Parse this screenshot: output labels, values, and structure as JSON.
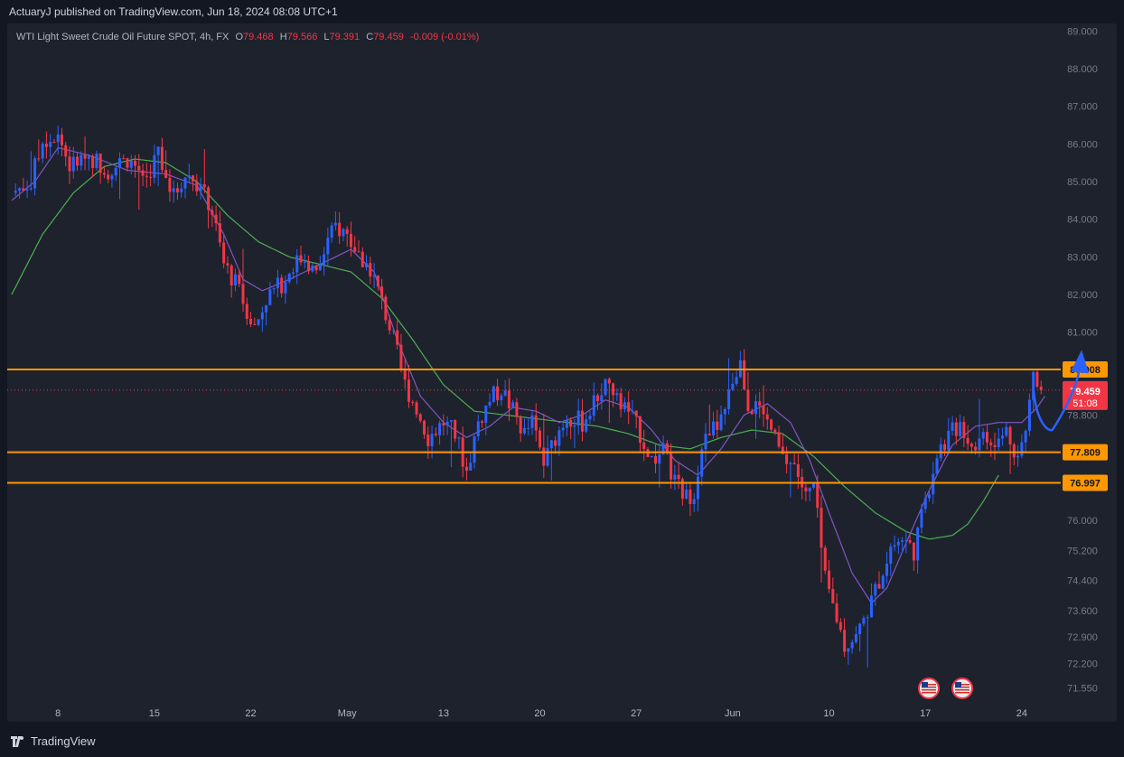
{
  "header": {
    "publisher_line": "ActuaryJ published on TradingView.com, Jun 18, 2024 08:08 UTC+1"
  },
  "legend": {
    "symbol": "WTI Light Sweet Crude Oil Future SPOT, 4h, FX",
    "open_label": "O",
    "open": "79.468",
    "high_label": "H",
    "high": "79.566",
    "low_label": "L",
    "low": "79.391",
    "close_label": "C",
    "close": "79.459",
    "change": "-0.009 (-0.01%)"
  },
  "footer": {
    "brand": "TradingView"
  },
  "colors": {
    "up": "#2962ff",
    "down": "#f23645",
    "ma_fast": "#7e57c2",
    "ma_slow": "#4caf50",
    "level": "#ff9800",
    "arrow": "#2962ff",
    "background": "#1e222d"
  },
  "chart_data": {
    "type": "candlestick",
    "title": "WTI Light Sweet Crude Oil Future SPOT, 4h, FX",
    "ylim": [
      71.2,
      89.2
    ],
    "y_tick_labels": [
      "89.000",
      "88.000",
      "87.000",
      "86.000",
      "85.000",
      "84.000",
      "83.000",
      "82.000",
      "81.000",
      "78.800",
      "76.000",
      "75.200",
      "74.400",
      "73.600",
      "72.900",
      "72.200",
      "71.550"
    ],
    "y_tick_values": [
      89.0,
      88.0,
      87.0,
      86.0,
      85.0,
      84.0,
      83.0,
      82.0,
      81.0,
      78.8,
      76.0,
      75.2,
      74.4,
      73.6,
      72.9,
      72.2,
      71.55
    ],
    "x_tick_labels": [
      "8",
      "15",
      "22",
      "May",
      "13",
      "20",
      "27",
      "Jun",
      "10",
      "17",
      "24"
    ],
    "x_tick_index": [
      12,
      37,
      62,
      87,
      112,
      137,
      162,
      187,
      212,
      237,
      262
    ],
    "price_levels": [
      {
        "label": "80.008",
        "value": 80.008
      },
      {
        "label": "77.809",
        "value": 77.809
      },
      {
        "label": "76.997",
        "value": 76.997
      }
    ],
    "current_price": {
      "label": "79.459",
      "value": 79.459,
      "countdown": "51:08"
    },
    "anchors": [
      [
        0,
        84.7
      ],
      [
        5,
        85.0
      ],
      [
        8,
        86.1
      ],
      [
        12,
        86.3
      ],
      [
        15,
        85.4
      ],
      [
        20,
        85.7
      ],
      [
        25,
        85.3
      ],
      [
        30,
        85.6
      ],
      [
        35,
        85.1
      ],
      [
        38,
        85.8
      ],
      [
        42,
        84.6
      ],
      [
        45,
        85.2
      ],
      [
        48,
        85.0
      ],
      [
        52,
        84.2
      ],
      [
        55,
        82.8
      ],
      [
        58,
        82.3
      ],
      [
        61,
        81.6
      ],
      [
        63,
        81.1
      ],
      [
        66,
        81.9
      ],
      [
        70,
        82.3
      ],
      [
        73,
        82.8
      ],
      [
        76,
        83.0
      ],
      [
        79,
        82.5
      ],
      [
        82,
        83.4
      ],
      [
        84,
        83.8
      ],
      [
        87,
        83.6
      ],
      [
        90,
        83.0
      ],
      [
        93,
        82.7
      ],
      [
        96,
        81.8
      ],
      [
        99,
        80.8
      ],
      [
        102,
        79.6
      ],
      [
        105,
        79.0
      ],
      [
        108,
        78.2
      ],
      [
        112,
        78.6
      ],
      [
        115,
        78.3
      ],
      [
        118,
        77.3
      ],
      [
        121,
        78.6
      ],
      [
        124,
        79.2
      ],
      [
        127,
        79.5
      ],
      [
        130,
        78.9
      ],
      [
        133,
        78.3
      ],
      [
        135,
        78.6
      ],
      [
        138,
        77.5
      ],
      [
        141,
        78.2
      ],
      [
        144,
        78.8
      ],
      [
        148,
        78.6
      ],
      [
        151,
        79.1
      ],
      [
        154,
        79.7
      ],
      [
        157,
        79.2
      ],
      [
        160,
        78.9
      ],
      [
        163,
        78.3
      ],
      [
        166,
        77.6
      ],
      [
        169,
        77.8
      ],
      [
        172,
        77.0
      ],
      [
        175,
        76.6
      ],
      [
        177,
        76.8
      ],
      [
        179,
        78.0
      ],
      [
        182,
        78.4
      ],
      [
        185,
        78.8
      ],
      [
        187,
        79.7
      ],
      [
        189,
        80.2
      ],
      [
        191,
        79.1
      ],
      [
        194,
        78.9
      ],
      [
        197,
        78.4
      ],
      [
        200,
        77.6
      ],
      [
        203,
        77.5
      ],
      [
        206,
        76.6
      ],
      [
        208,
        76.9
      ],
      [
        211,
        74.4
      ],
      [
        214,
        73.4
      ],
      [
        216,
        72.7
      ],
      [
        219,
        72.9
      ],
      [
        222,
        73.6
      ],
      [
        225,
        74.4
      ],
      [
        228,
        75.3
      ],
      [
        231,
        75.5
      ],
      [
        234,
        75.2
      ],
      [
        237,
        76.5
      ],
      [
        240,
        77.8
      ],
      [
        243,
        78.2
      ],
      [
        246,
        78.6
      ],
      [
        249,
        78.0
      ],
      [
        252,
        78.2
      ],
      [
        255,
        77.9
      ],
      [
        258,
        78.4
      ],
      [
        261,
        77.7
      ],
      [
        263,
        78.3
      ],
      [
        265,
        80.0
      ],
      [
        267,
        79.5
      ]
    ],
    "ma_fast_anchors": [
      [
        0,
        84.5
      ],
      [
        6,
        85.0
      ],
      [
        12,
        85.9
      ],
      [
        20,
        85.7
      ],
      [
        30,
        85.3
      ],
      [
        40,
        85.2
      ],
      [
        48,
        84.9
      ],
      [
        55,
        83.6
      ],
      [
        60,
        82.4
      ],
      [
        65,
        82.1
      ],
      [
        72,
        82.4
      ],
      [
        80,
        82.8
      ],
      [
        88,
        83.2
      ],
      [
        94,
        82.6
      ],
      [
        100,
        80.8
      ],
      [
        106,
        79.3
      ],
      [
        112,
        78.6
      ],
      [
        118,
        78.2
      ],
      [
        124,
        78.5
      ],
      [
        130,
        79.0
      ],
      [
        136,
        78.9
      ],
      [
        142,
        78.6
      ],
      [
        148,
        78.8
      ],
      [
        154,
        79.2
      ],
      [
        160,
        79.0
      ],
      [
        166,
        78.4
      ],
      [
        172,
        77.6
      ],
      [
        178,
        77.2
      ],
      [
        184,
        77.9
      ],
      [
        190,
        78.8
      ],
      [
        196,
        79.1
      ],
      [
        202,
        78.6
      ],
      [
        207,
        77.6
      ],
      [
        212,
        76.2
      ],
      [
        218,
        74.6
      ],
      [
        223,
        73.8
      ],
      [
        227,
        74.2
      ],
      [
        232,
        75.4
      ],
      [
        238,
        76.8
      ],
      [
        244,
        78.0
      ],
      [
        250,
        78.5
      ],
      [
        256,
        78.6
      ],
      [
        262,
        78.6
      ],
      [
        266,
        79.0
      ],
      [
        268,
        79.3
      ]
    ],
    "ma_slow_anchors": [
      [
        0,
        82.0
      ],
      [
        8,
        83.6
      ],
      [
        16,
        84.7
      ],
      [
        24,
        85.4
      ],
      [
        32,
        85.6
      ],
      [
        40,
        85.5
      ],
      [
        48,
        85.0
      ],
      [
        56,
        84.1
      ],
      [
        64,
        83.4
      ],
      [
        72,
        83.0
      ],
      [
        80,
        82.8
      ],
      [
        88,
        82.6
      ],
      [
        96,
        81.9
      ],
      [
        104,
        80.8
      ],
      [
        112,
        79.6
      ],
      [
        120,
        78.9
      ],
      [
        128,
        78.8
      ],
      [
        136,
        78.7
      ],
      [
        144,
        78.6
      ],
      [
        152,
        78.5
      ],
      [
        160,
        78.3
      ],
      [
        168,
        78.0
      ],
      [
        176,
        77.9
      ],
      [
        184,
        78.2
      ],
      [
        192,
        78.4
      ],
      [
        200,
        78.3
      ],
      [
        208,
        77.7
      ],
      [
        216,
        76.9
      ],
      [
        224,
        76.2
      ],
      [
        232,
        75.7
      ],
      [
        238,
        75.5
      ],
      [
        244,
        75.6
      ],
      [
        248,
        75.9
      ],
      [
        252,
        76.5
      ],
      [
        256,
        77.2
      ]
    ],
    "projection": {
      "from": [
        265,
        79.5
      ],
      "dip": [
        270,
        78.7
      ],
      "to": [
        278,
        80.0
      ]
    }
  }
}
